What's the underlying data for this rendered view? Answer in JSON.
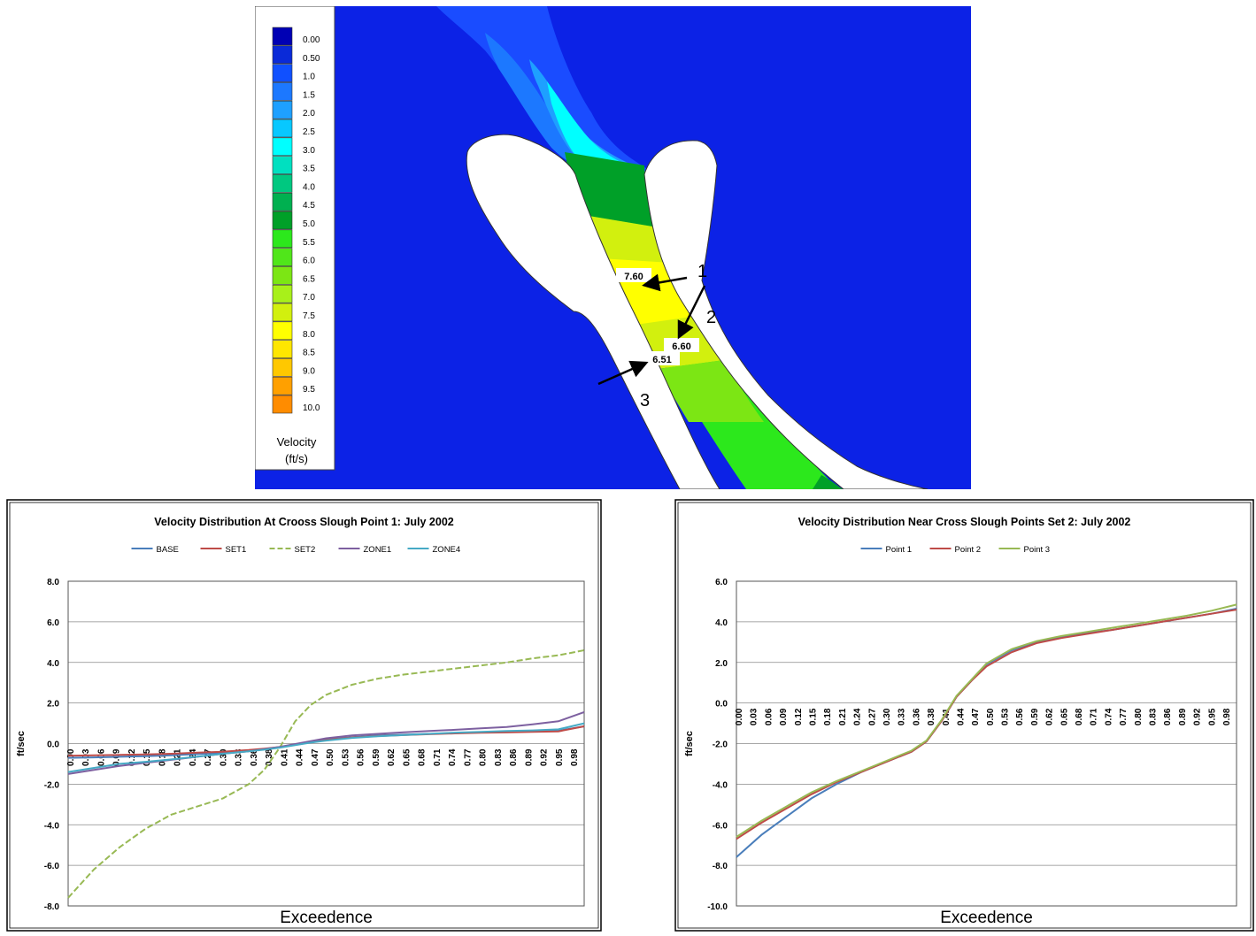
{
  "map": {
    "legend": {
      "title": "Velocity",
      "unit": "(ft/s)",
      "levels": [
        "0.00",
        "0.50",
        "1.0",
        "1.5",
        "2.0",
        "2.5",
        "3.0",
        "3.5",
        "4.0",
        "4.5",
        "5.0",
        "5.5",
        "6.0",
        "6.5",
        "7.0",
        "7.5",
        "8.0",
        "8.5",
        "9.0",
        "9.5",
        "10.0"
      ],
      "colors": [
        "#0000b4",
        "#0a2ad8",
        "#1050ff",
        "#1c78ff",
        "#1ea0ff",
        "#08c8ff",
        "#00ffff",
        "#00e0c0",
        "#00c880",
        "#00b050",
        "#00a028",
        "#2ce81c",
        "#50e61a",
        "#7ce614",
        "#a8f01a",
        "#d2f00e",
        "#ffff00",
        "#ffe600",
        "#ffc800",
        "#ffa000",
        "#ff8c00"
      ]
    },
    "labels": [
      {
        "value": "7.60",
        "point": "1"
      },
      {
        "value": "6.60",
        "point": "2"
      },
      {
        "value": "6.51",
        "point": "3"
      }
    ],
    "background_color": "#0c22e6",
    "island_color": "#ffffff"
  },
  "chart_data": [
    {
      "type": "line",
      "title": "Velocity Distribution At Crooss Slough Point 1: July 2002",
      "xlabel": "Exceedence",
      "ylabel": "ft/sec",
      "ylim": [
        -8.0,
        8.0
      ],
      "yticks": [
        "8.0",
        "6.0",
        "4.0",
        "2.0",
        "0.0",
        "-2.0",
        "-4.0",
        "-6.0",
        "-8.0"
      ],
      "x_ticks": [
        "0.00",
        "0.03",
        "0.06",
        "0.09",
        "0.12",
        "0.15",
        "0.18",
        "0.21",
        "0.24",
        "0.27",
        "0.30",
        "0.33",
        "0.36",
        "0.38",
        "0.41",
        "0.44",
        "0.47",
        "0.50",
        "0.53",
        "0.56",
        "0.59",
        "0.62",
        "0.65",
        "0.68",
        "0.71",
        "0.74",
        "0.77",
        "0.80",
        "0.83",
        "0.86",
        "0.89",
        "0.92",
        "0.95",
        "0.98"
      ],
      "x": [
        0.0,
        0.05,
        0.1,
        0.15,
        0.2,
        0.25,
        0.3,
        0.35,
        0.38,
        0.41,
        0.44,
        0.47,
        0.5,
        0.55,
        0.6,
        0.65,
        0.7,
        0.75,
        0.8,
        0.85,
        0.9,
        0.95,
        1.0
      ],
      "grid": true,
      "legend": "top",
      "series": [
        {
          "name": "BASE",
          "color": "#4a7ebb",
          "dash": false,
          "values": [
            -0.7,
            -0.68,
            -0.65,
            -0.62,
            -0.58,
            -0.52,
            -0.45,
            -0.35,
            -0.27,
            -0.18,
            -0.05,
            0.08,
            0.2,
            0.32,
            0.4,
            0.44,
            0.48,
            0.52,
            0.55,
            0.58,
            0.6,
            0.63,
            0.85
          ]
        },
        {
          "name": "SET1",
          "color": "#be4b48",
          "dash": false,
          "values": [
            -0.6,
            -0.58,
            -0.56,
            -0.53,
            -0.5,
            -0.45,
            -0.4,
            -0.32,
            -0.25,
            -0.17,
            -0.05,
            0.06,
            0.18,
            0.3,
            0.37,
            0.42,
            0.46,
            0.5,
            0.53,
            0.55,
            0.58,
            0.6,
            0.85
          ]
        },
        {
          "name": "SET2",
          "color": "#98b954",
          "dash": true,
          "values": [
            -7.6,
            -6.2,
            -5.1,
            -4.2,
            -3.5,
            -3.1,
            -2.7,
            -2.0,
            -1.3,
            -0.2,
            1.1,
            1.9,
            2.4,
            2.9,
            3.2,
            3.4,
            3.55,
            3.7,
            3.85,
            4.0,
            4.2,
            4.35,
            4.6
          ]
        },
        {
          "name": "ZONE1",
          "color": "#7d60a0",
          "dash": false,
          "values": [
            -1.5,
            -1.3,
            -1.1,
            -0.95,
            -0.8,
            -0.65,
            -0.5,
            -0.38,
            -0.28,
            -0.16,
            -0.02,
            0.12,
            0.26,
            0.4,
            0.48,
            0.56,
            0.62,
            0.68,
            0.75,
            0.82,
            0.95,
            1.1,
            1.55
          ]
        },
        {
          "name": "ZONE4",
          "color": "#46aac5",
          "dash": false,
          "values": [
            -1.4,
            -1.2,
            -1.0,
            -0.9,
            -0.78,
            -0.64,
            -0.5,
            -0.38,
            -0.3,
            -0.2,
            -0.08,
            0.05,
            0.15,
            0.28,
            0.36,
            0.42,
            0.48,
            0.54,
            0.58,
            0.62,
            0.65,
            0.7,
            1.0
          ]
        }
      ]
    },
    {
      "type": "line",
      "title": "Velocity Distribution Near Cross Slough Points Set 2: July 2002",
      "xlabel": "Exceedence",
      "ylabel": "ft/sec",
      "ylim": [
        -10.0,
        6.0
      ],
      "yticks": [
        "6.0",
        "4.0",
        "2.0",
        "0.0",
        "-2.0",
        "-4.0",
        "-6.0",
        "-8.0",
        "-10.0"
      ],
      "x_ticks": [
        "0.00",
        "0.03",
        "0.06",
        "0.09",
        "0.12",
        "0.15",
        "0.18",
        "0.21",
        "0.24",
        "0.27",
        "0.30",
        "0.33",
        "0.36",
        "0.38",
        "0.41",
        "0.44",
        "0.47",
        "0.50",
        "0.53",
        "0.56",
        "0.59",
        "0.62",
        "0.65",
        "0.68",
        "0.71",
        "0.74",
        "0.77",
        "0.80",
        "0.83",
        "0.86",
        "0.89",
        "0.92",
        "0.95",
        "0.98"
      ],
      "x": [
        0.0,
        0.05,
        0.1,
        0.15,
        0.2,
        0.25,
        0.3,
        0.35,
        0.38,
        0.41,
        0.44,
        0.47,
        0.5,
        0.55,
        0.6,
        0.65,
        0.7,
        0.75,
        0.8,
        0.85,
        0.9,
        0.95,
        1.0
      ],
      "grid": true,
      "legend": "top",
      "series": [
        {
          "name": "Point 1",
          "color": "#4a7ebb",
          "dash": false,
          "values": [
            -7.6,
            -6.5,
            -5.6,
            -4.7,
            -4.0,
            -3.4,
            -2.9,
            -2.4,
            -1.9,
            -0.9,
            0.3,
            1.1,
            1.9,
            2.6,
            3.0,
            3.25,
            3.45,
            3.6,
            3.8,
            4.0,
            4.2,
            4.4,
            4.65
          ]
        },
        {
          "name": "Point 2",
          "color": "#be4b48",
          "dash": false,
          "values": [
            -6.7,
            -5.9,
            -5.2,
            -4.5,
            -3.9,
            -3.4,
            -2.9,
            -2.4,
            -1.9,
            -0.9,
            0.3,
            1.1,
            1.8,
            2.5,
            2.95,
            3.2,
            3.4,
            3.6,
            3.8,
            4.0,
            4.2,
            4.4,
            4.6
          ]
        },
        {
          "name": "Point 3",
          "color": "#98b954",
          "dash": false,
          "values": [
            -6.6,
            -5.8,
            -5.1,
            -4.4,
            -3.85,
            -3.35,
            -2.85,
            -2.35,
            -1.85,
            -0.85,
            0.35,
            1.15,
            1.95,
            2.65,
            3.05,
            3.3,
            3.5,
            3.7,
            3.9,
            4.1,
            4.3,
            4.55,
            4.85
          ]
        }
      ]
    }
  ]
}
